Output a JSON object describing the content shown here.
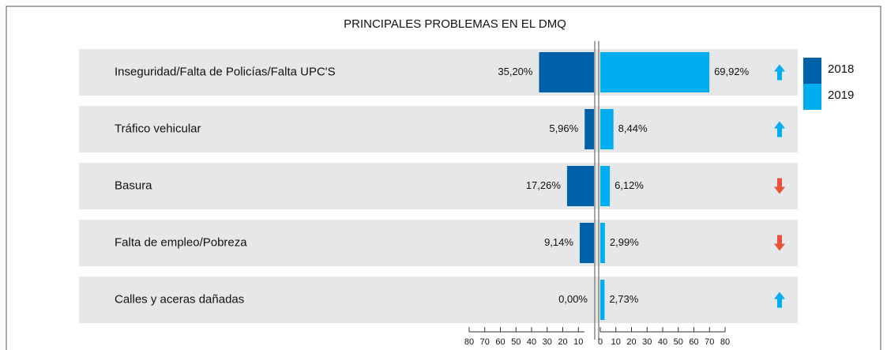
{
  "chart_data": {
    "type": "butterfly-bar",
    "title": "PRINCIPALES PROBLEMAS EN EL DMQ",
    "categories": [
      "Inseguridad/Falta de Policías/Falta UPC'S",
      "Tráfico vehicular",
      "Basura",
      "Falta de empleo/Pobreza",
      "Calles y aceras dañadas"
    ],
    "series": [
      {
        "name": "2018",
        "color": "#0061a8",
        "values": [
          35.2,
          5.96,
          17.26,
          9.14,
          0
        ],
        "value_labels": [
          "35,20%",
          "5,96%",
          "17,26%",
          "9,14%",
          "0,00%"
        ]
      },
      {
        "name": "2019",
        "color": "#00aeef",
        "values": [
          69.92,
          8.44,
          6.12,
          2.99,
          2.73
        ],
        "value_labels": [
          "69,92%",
          "8,44%",
          "6,12%",
          "2,99%",
          "2,73%"
        ]
      }
    ],
    "xlim": [
      0,
      80
    ],
    "xticks_left": [
      80,
      70,
      60,
      50,
      40,
      30,
      20,
      10
    ],
    "xticks": [
      0,
      10,
      20,
      30,
      40,
      50,
      60,
      70,
      80
    ],
    "up_color": "#00aeef",
    "down_color": "#e5533a"
  }
}
